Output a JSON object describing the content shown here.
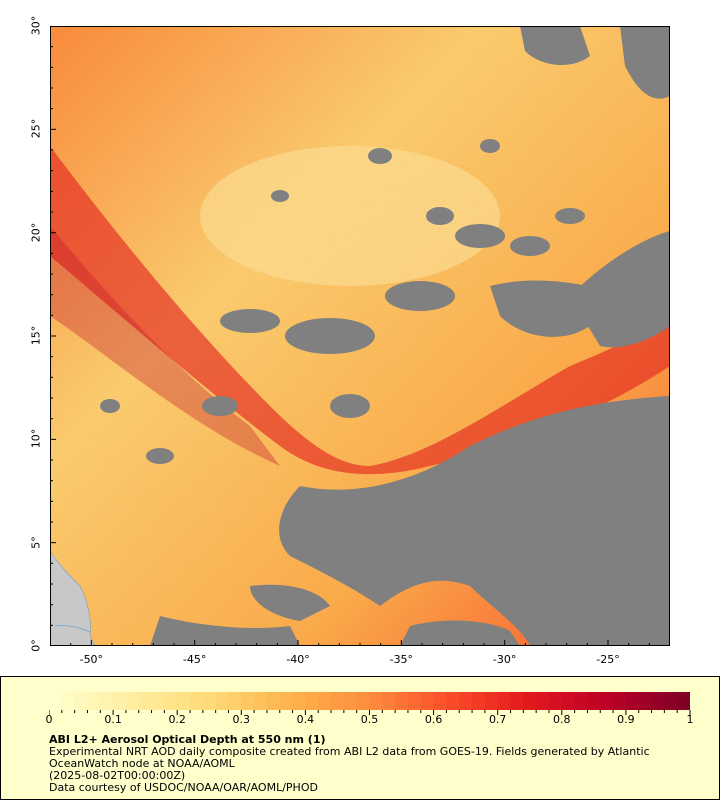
{
  "map": {
    "lat_labels": [
      "0°",
      "5°",
      "10°",
      "15°",
      "20°",
      "25°",
      "30°"
    ],
    "lon_labels": [
      "-50°",
      "-45°",
      "-40°",
      "-35°",
      "-30°",
      "-25°"
    ],
    "lon_range": [
      -52,
      -22
    ],
    "lat_range": [
      0,
      30
    ],
    "cloud_mask_color": "#808080",
    "land_color": "#c8c8c8"
  },
  "colorbar": {
    "tick_labels": [
      "0",
      "0.1",
      "0.2",
      "0.3",
      "0.4",
      "0.5",
      "0.6",
      "0.7",
      "0.8",
      "0.9",
      "1"
    ],
    "range": [
      0,
      1
    ],
    "colors": [
      "#ffffcc",
      "#ffeda0",
      "#fed976",
      "#feb24c",
      "#fd8d3c",
      "#fc4e2a",
      "#e31a1c",
      "#bd0026",
      "#800026"
    ]
  },
  "legend": {
    "title": "ABI L2+ Aerosol Optical Depth at 550 nm (1)",
    "line1": "Experimental NRT AOD daily composite created from ABI L2 data from GOES-19. Fields generated by Atlantic OceanWatch node at NOAA/AOML",
    "line2": "(2025-08-02T00:00:00Z)",
    "line3": "Data courtesy of USDOC/NOAA/OAR/AOML/PHOD"
  }
}
